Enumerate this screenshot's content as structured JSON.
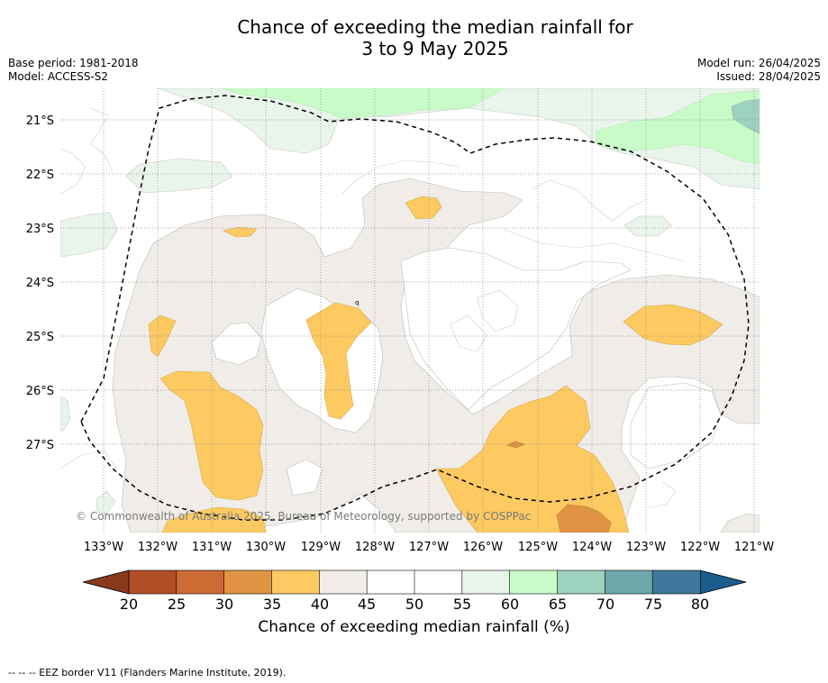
{
  "title": {
    "line1": "Chance of exceeding the median rainfall for",
    "line2": "3 to 9 May 2025"
  },
  "info": {
    "base_period": "Base period: 1981-2018",
    "model": "Model: ACCESS-S2",
    "model_run": "Model run: 26/04/2025",
    "issued": "Issued: 28/04/2025"
  },
  "map": {
    "lat_labels": [
      "21°S",
      "22°S",
      "23°S",
      "24°S",
      "25°S",
      "26°S",
      "27°S"
    ],
    "lon_labels": [
      "133°W",
      "132°W",
      "131°W",
      "130°W",
      "129°W",
      "128°W",
      "127°W",
      "126°W",
      "125°W",
      "124°W",
      "123°W",
      "122°W",
      "121°W"
    ],
    "copyright": "© Commonwealth of Australia 2025, Bureau of Meteorology, supported by COSPPac",
    "small_label": "q",
    "colors": {
      "lt_orange": "#fdca62",
      "orange": "#df9444",
      "neutral": "#f0ede9",
      "lt_green": "#e9f5ea",
      "green": "#c9fbc9",
      "teal": "#9dd2be"
    }
  },
  "colorbar": {
    "ticks": [
      "20",
      "25",
      "30",
      "35",
      "40",
      "45",
      "50",
      "55",
      "60",
      "65",
      "70",
      "75",
      "80"
    ],
    "colors": [
      "#b04e26",
      "#cd6b35",
      "#df9444",
      "#fdca62",
      "#f0ede9",
      "#ffffff",
      "#ffffff",
      "#e9f5ea",
      "#c9fbc9",
      "#9dd2be",
      "#6da7a9",
      "#3f779c"
    ],
    "under_color": "#8a3a1c",
    "over_color": "#1b5c8c",
    "label": "Chance of exceeding median rainfall (%)"
  },
  "footnote": "--  --  -- EEZ border V11 (Flanders Marine Institute, 2019)."
}
